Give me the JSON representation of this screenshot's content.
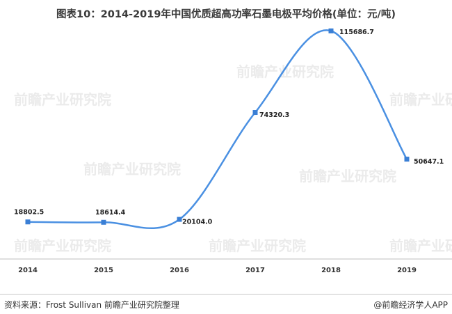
{
  "title": "图表10：2014-2019年中国优质超高功率石墨电极平均价格(单位：元/吨)",
  "footer": {
    "source": "资料来源：Frost Sullivan  前瞻产业研究院整理",
    "brand": "@前瞻经济学人APP"
  },
  "watermark": {
    "text": "前瞻产业研究院"
  },
  "colors": {
    "line": "#4a90e2",
    "marker": "#3a7fd5",
    "axis": "#bfbfbf"
  },
  "chart_data": {
    "type": "line",
    "title": "图表10：2014-2019年中国优质超高功率石墨电极平均价格(单位：元/吨)",
    "xlabel": "",
    "ylabel": "",
    "categories": [
      "2014",
      "2015",
      "2016",
      "2017",
      "2018",
      "2019"
    ],
    "series": [
      {
        "values": [
          18802.5,
          18614.4,
          20104.0,
          74320.3,
          115686.7,
          50647.1
        ],
        "labels": [
          "18802.5",
          "18614.4",
          "20104.0",
          "74320.3",
          "115686.7",
          "50647.1"
        ]
      }
    ],
    "ylim": [
      0,
      125000
    ],
    "smooth": true,
    "grid": false,
    "legend": "none"
  }
}
